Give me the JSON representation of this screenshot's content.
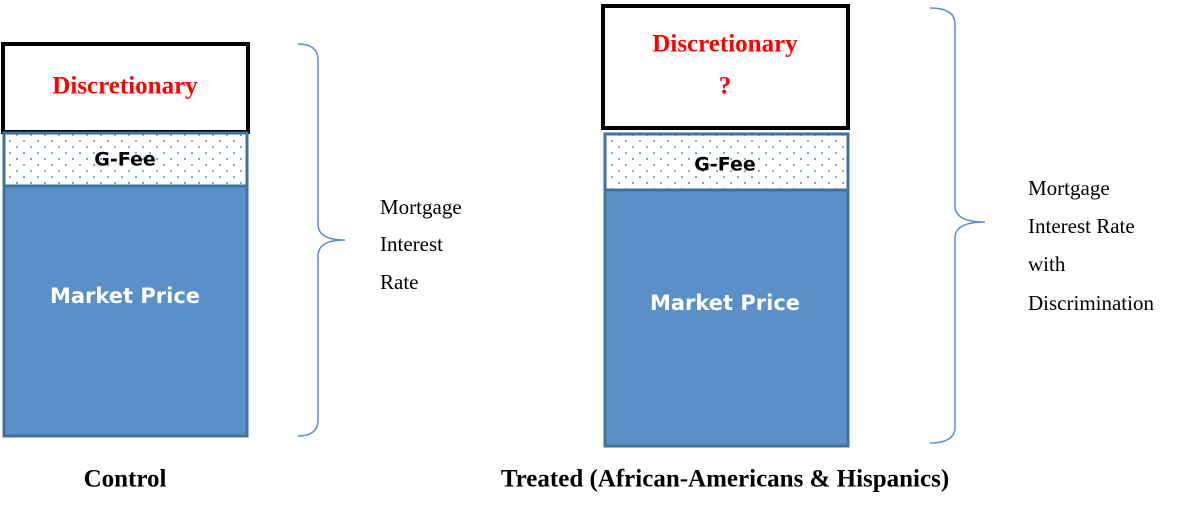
{
  "panels": [
    {
      "caption": "Control",
      "segments": [
        {
          "lines": [
            "Discretionary"
          ]
        },
        {
          "lines": [
            "G-Fee"
          ]
        },
        {
          "lines": [
            "Market Price"
          ]
        }
      ],
      "bracket_label": [
        "Mortgage",
        "Interest",
        "Rate"
      ]
    },
    {
      "caption": "Treated (African-Americans & Hispanics)",
      "segments": [
        {
          "lines": [
            "Discretionary",
            "?"
          ]
        },
        {
          "lines": [
            "G-Fee"
          ]
        },
        {
          "lines": [
            "Market Price"
          ]
        }
      ],
      "bracket_label": [
        "Mortgage",
        "Interest Rate",
        "with",
        "Discrimination"
      ]
    }
  ]
}
